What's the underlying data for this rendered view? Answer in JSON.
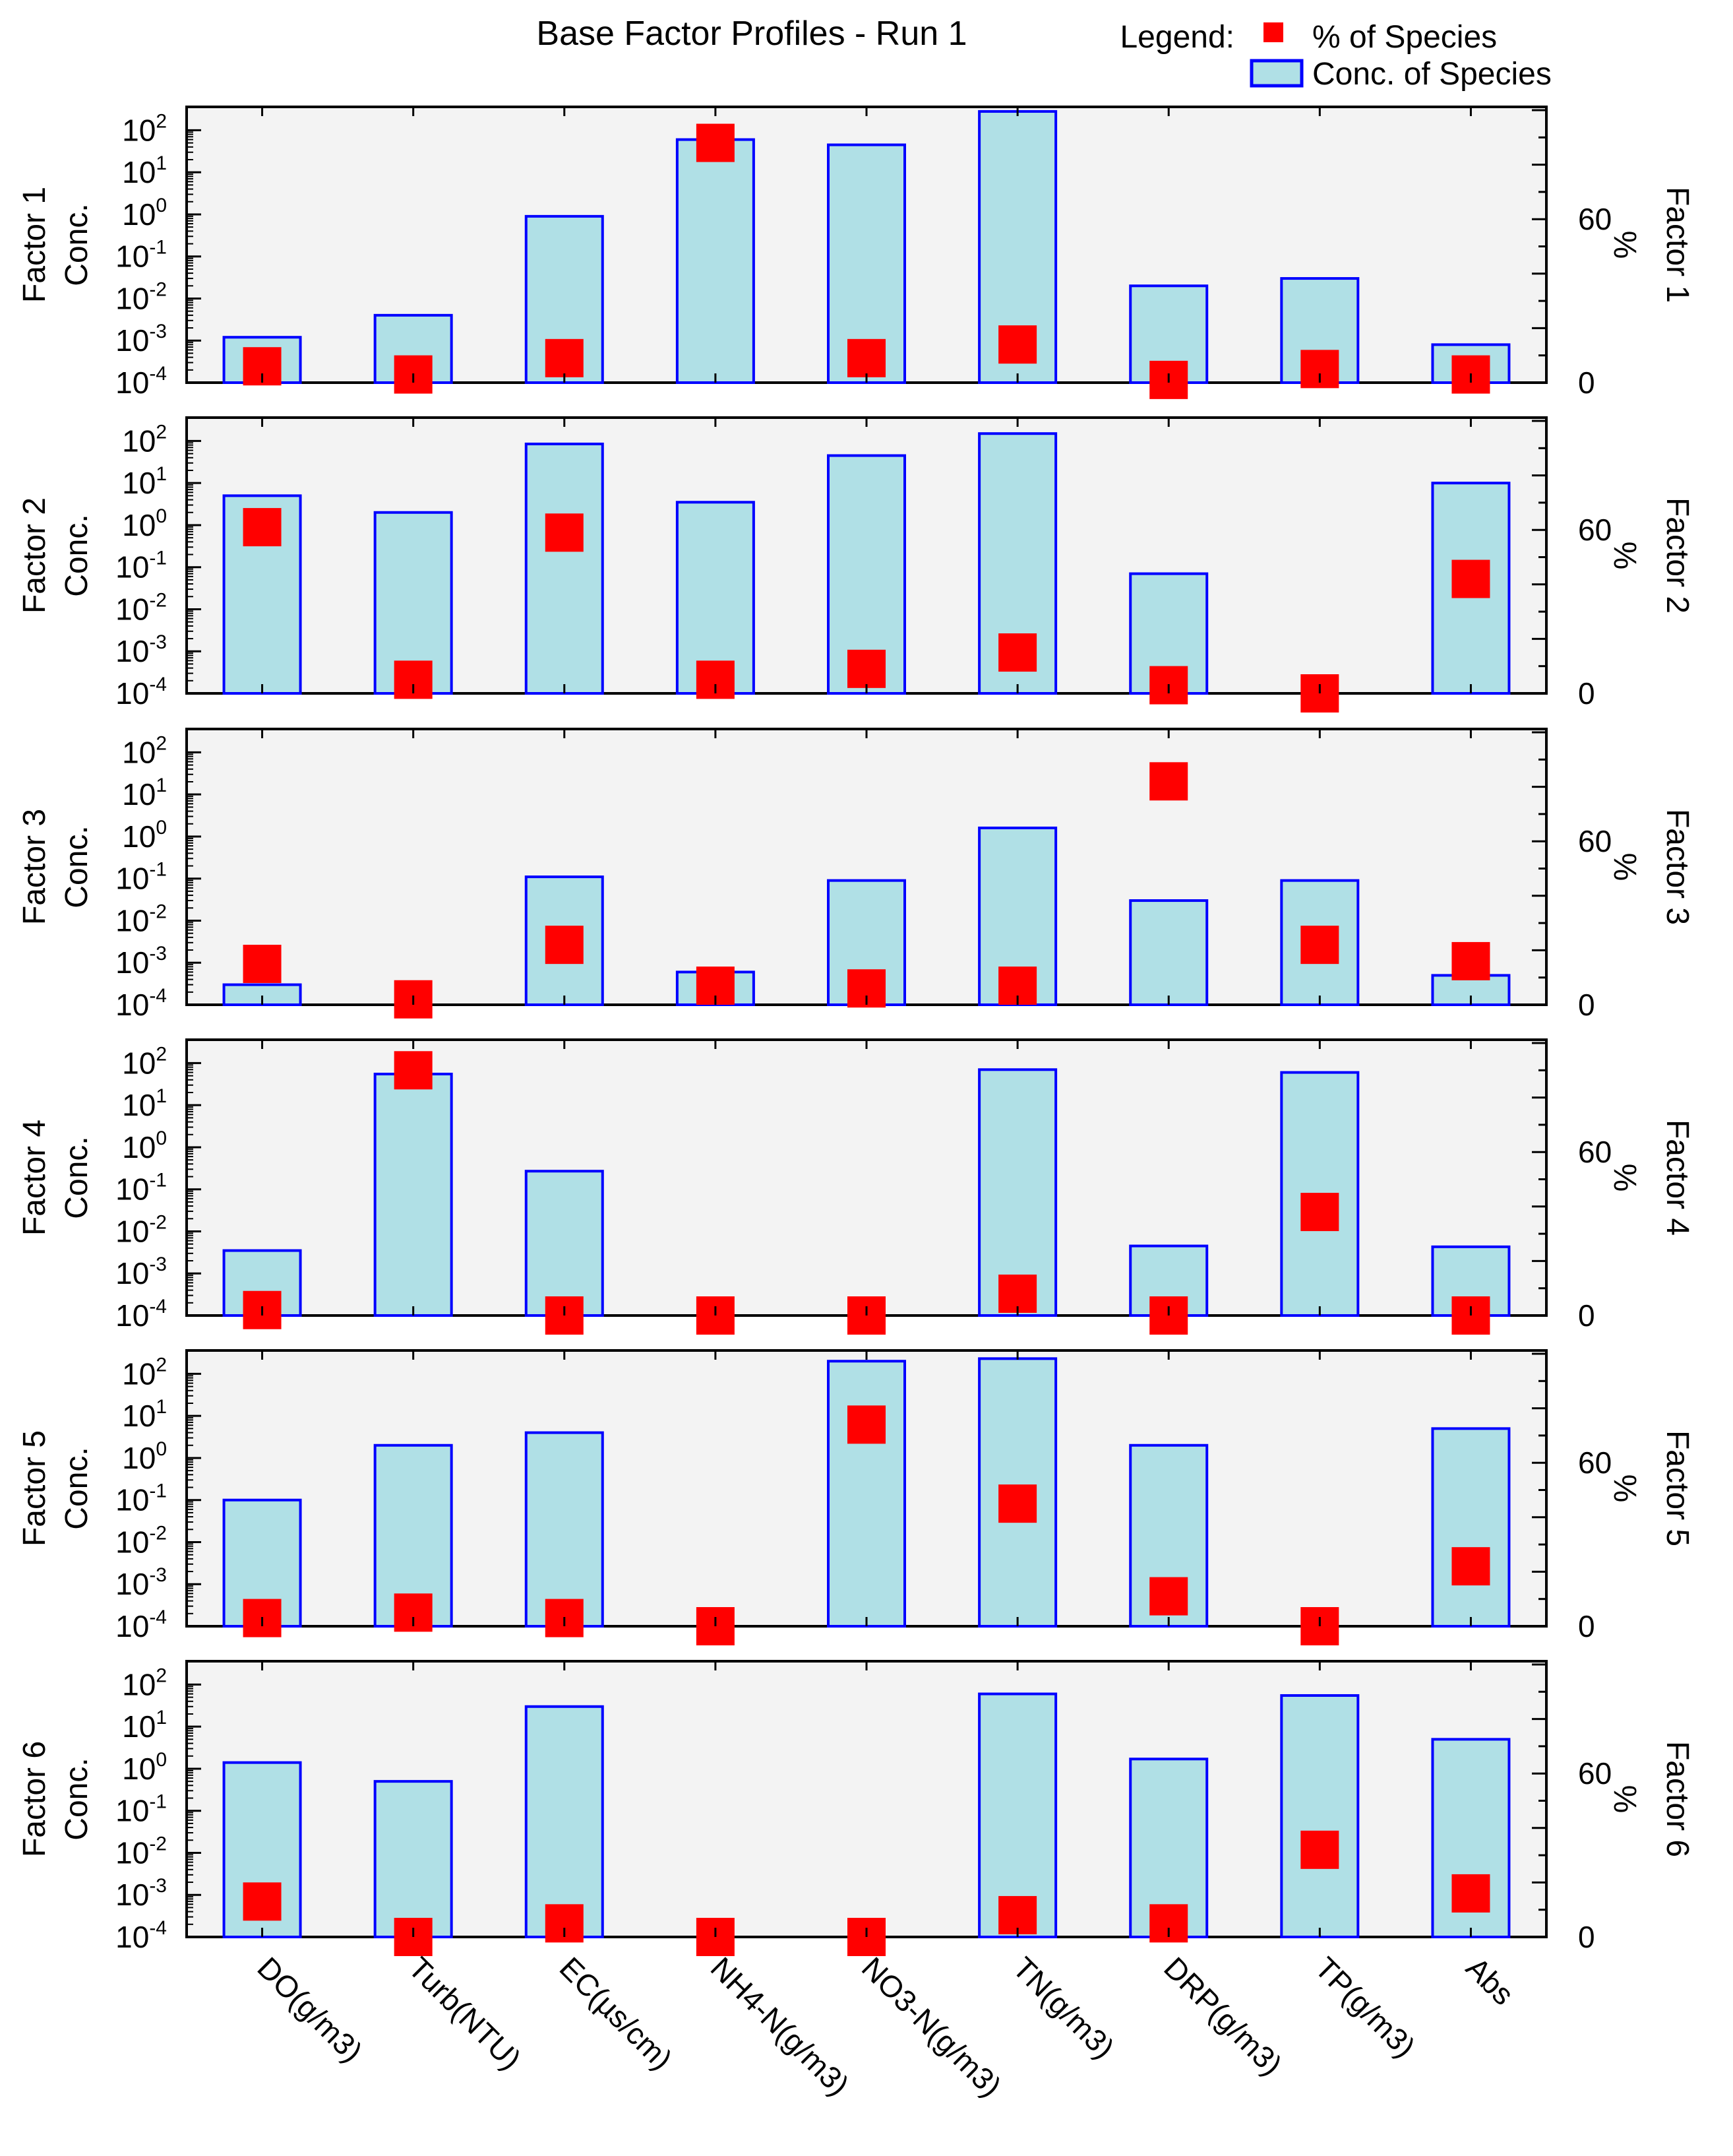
{
  "chart_data": {
    "type": "bar",
    "title": "Base Factor Profiles - Run 1",
    "legend": {
      "label": "Legend:",
      "entries": [
        {
          "name": "% of Species",
          "marker": "square",
          "color": "#ff0000"
        },
        {
          "name": "Conc. of Species",
          "marker": "bar",
          "fill": "#b0e0e6",
          "stroke": "#0000ff"
        }
      ],
      "placement": "top-right"
    },
    "categories": [
      "DO(g/m3)",
      "Turb(NTU)",
      "EC(µs/cm)",
      "NH4-N(g/m3)",
      "NO3-N(g/m3)",
      "TN(g/m3)",
      "DRP(g/m3)",
      "TP(g/m3)",
      "Abs"
    ],
    "left_axis": {
      "label": "Conc.",
      "scale": "log",
      "range": [
        0.0001,
        300
      ],
      "ticks": [
        {
          "base": "10",
          "exp": "-4"
        },
        {
          "base": "10",
          "exp": "-3"
        },
        {
          "base": "10",
          "exp": "-2"
        },
        {
          "base": "10",
          "exp": "-1"
        },
        {
          "base": "10",
          "exp": "0"
        },
        {
          "base": "10",
          "exp": "1"
        },
        {
          "base": "10",
          "exp": "2"
        }
      ]
    },
    "right_axis": {
      "label": "%",
      "range": [
        0,
        100
      ],
      "ticks": [
        "0",
        "60"
      ]
    },
    "factors": [
      {
        "name": "Factor 1",
        "conc": [
          0.0012,
          0.004,
          0.9,
          60,
          45,
          280,
          0.02,
          0.03,
          0.0008
        ],
        "percent": [
          6,
          3,
          9,
          88,
          9,
          14,
          1,
          5,
          3
        ]
      },
      {
        "name": "Factor 2",
        "conc": [
          5,
          2,
          85,
          3.5,
          45,
          150,
          0.07,
          0.0001,
          10
        ],
        "percent": [
          61,
          5,
          59,
          5,
          9,
          15,
          3,
          0,
          42
        ]
      },
      {
        "name": "Factor 3",
        "conc": [
          0.0003,
          0.0001,
          0.11,
          0.0006,
          0.09,
          1.6,
          0.03,
          0.09,
          0.0005
        ],
        "percent": [
          15,
          2,
          22,
          7,
          6,
          7,
          82,
          22,
          16
        ]
      },
      {
        "name": "Factor 4",
        "conc": [
          0.0035,
          55,
          0.27,
          0.0001,
          0.0001,
          70,
          0.0045,
          60,
          0.0043
        ],
        "percent": [
          2,
          90,
          0,
          0,
          0,
          8,
          0,
          38,
          0
        ]
      },
      {
        "name": "Factor 5",
        "conc": [
          0.1,
          2,
          4,
          0.0001,
          200,
          230,
          2,
          0.0001,
          5
        ],
        "percent": [
          3,
          5,
          3,
          0,
          74,
          45,
          11,
          0,
          22
        ]
      },
      {
        "name": "Factor 6",
        "conc": [
          1.4,
          0.5,
          30,
          0.0001,
          0.0001,
          60,
          1.7,
          55,
          5
        ],
        "percent": [
          13,
          0,
          5,
          0,
          0,
          8,
          5,
          32,
          16
        ]
      }
    ]
  }
}
